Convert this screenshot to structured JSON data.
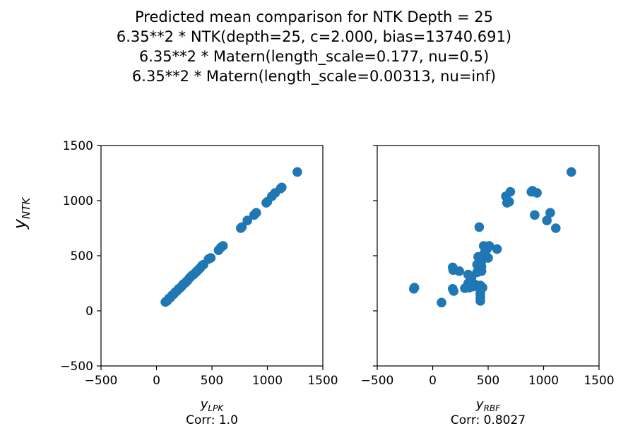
{
  "figure": {
    "title_lines": [
      "Predicted mean comparison for NTK Depth = 25",
      "6.35**2 * NTK(depth=25, c=2.000, bias=13740.691)",
      "6.35**2 * Matern(length_scale=0.177, nu=0.5)",
      "6.35**2 * Matern(length_scale=0.00313, nu=inf)"
    ],
    "ylabel_main": "y",
    "ylabel_sub": "NTK"
  },
  "chart_data": [
    {
      "type": "scatter",
      "xlabel_main": "y",
      "xlabel_sub": "LPK",
      "caption": "Corr: 1.0",
      "xlim": [
        -500,
        1500
      ],
      "ylim": [
        -500,
        1500
      ],
      "xticks": [
        -500,
        0,
        500,
        1000,
        1500
      ],
      "yticks": [
        -500,
        0,
        500,
        1000,
        1500
      ],
      "xtick_labels": [
        "−500",
        "0",
        "500",
        "1000",
        "1500"
      ],
      "ytick_labels": [
        "−500",
        "0",
        "500",
        "1000",
        "1500"
      ],
      "show_yticklabels": true,
      "color": "#1f77b4",
      "points": [
        [
          80,
          80
        ],
        [
          95,
          90
        ],
        [
          110,
          110
        ],
        [
          125,
          120
        ],
        [
          140,
          140
        ],
        [
          155,
          150
        ],
        [
          170,
          170
        ],
        [
          185,
          180
        ],
        [
          200,
          200
        ],
        [
          210,
          205
        ],
        [
          225,
          220
        ],
        [
          240,
          240
        ],
        [
          255,
          250
        ],
        [
          265,
          260
        ],
        [
          280,
          275
        ],
        [
          300,
          300
        ],
        [
          320,
          320
        ],
        [
          335,
          330
        ],
        [
          350,
          345
        ],
        [
          365,
          360
        ],
        [
          380,
          375
        ],
        [
          395,
          390
        ],
        [
          410,
          410
        ],
        [
          425,
          420
        ],
        [
          470,
          470
        ],
        [
          490,
          480
        ],
        [
          560,
          550
        ],
        [
          580,
          575
        ],
        [
          600,
          590
        ],
        [
          760,
          750
        ],
        [
          770,
          760
        ],
        [
          820,
          820
        ],
        [
          880,
          870
        ],
        [
          900,
          890
        ],
        [
          990,
          980
        ],
        [
          1000,
          990
        ],
        [
          1040,
          1040
        ],
        [
          1070,
          1070
        ],
        [
          1120,
          1110
        ],
        [
          1130,
          1120
        ],
        [
          1270,
          1260
        ]
      ]
    },
    {
      "type": "scatter",
      "xlabel_main": "y",
      "xlabel_sub": "RBF",
      "caption": "Corr: 0.8027",
      "xlim": [
        -500,
        1500
      ],
      "ylim": [
        -500,
        1500
      ],
      "xticks": [
        -500,
        0,
        500,
        1000,
        1500
      ],
      "yticks": [
        -500,
        0,
        500,
        1000,
        1500
      ],
      "xtick_labels": [
        "−500",
        "0",
        "500",
        "1000",
        "1500"
      ],
      "ytick_labels": [
        "−500",
        "0",
        "500",
        "1000",
        "1500"
      ],
      "show_yticklabels": false,
      "color": "#1f77b4",
      "points": [
        [
          -170,
          200
        ],
        [
          -165,
          210
        ],
        [
          80,
          75
        ],
        [
          180,
          200
        ],
        [
          180,
          395
        ],
        [
          185,
          370
        ],
        [
          190,
          180
        ],
        [
          240,
          360
        ],
        [
          290,
          205
        ],
        [
          320,
          250
        ],
        [
          320,
          330
        ],
        [
          330,
          210
        ],
        [
          340,
          280
        ],
        [
          350,
          300
        ],
        [
          360,
          220
        ],
        [
          380,
          240
        ],
        [
          400,
          350
        ],
        [
          400,
          420
        ],
        [
          410,
          490
        ],
        [
          420,
          380
        ],
        [
          420,
          760
        ],
        [
          430,
          90
        ],
        [
          430,
          120
        ],
        [
          430,
          150
        ],
        [
          430,
          180
        ],
        [
          430,
          230
        ],
        [
          440,
          360
        ],
        [
          440,
          400
        ],
        [
          440,
          450
        ],
        [
          450,
          210
        ],
        [
          450,
          500
        ],
        [
          460,
          590
        ],
        [
          470,
          530
        ],
        [
          490,
          560
        ],
        [
          500,
          480
        ],
        [
          510,
          590
        ],
        [
          580,
          560
        ],
        [
          660,
          1040
        ],
        [
          670,
          980
        ],
        [
          690,
          990
        ],
        [
          700,
          1080
        ],
        [
          890,
          1080
        ],
        [
          900,
          1090
        ],
        [
          920,
          870
        ],
        [
          940,
          1070
        ],
        [
          1030,
          820
        ],
        [
          1060,
          890
        ],
        [
          1110,
          750
        ],
        [
          1250,
          1260
        ]
      ]
    }
  ]
}
